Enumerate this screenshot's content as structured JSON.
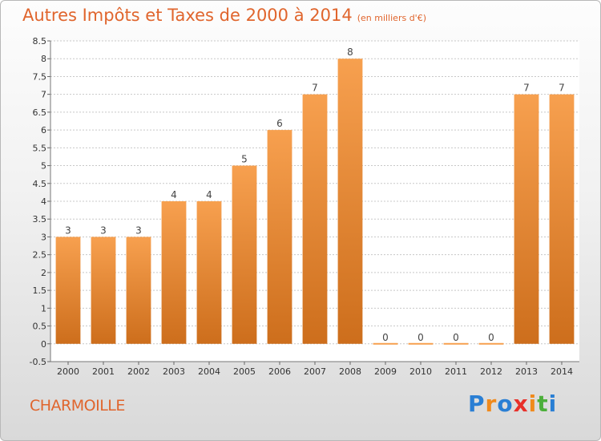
{
  "title": "Autres Impôts et Taxes de 2000 à 2014",
  "unit_note": "(en milliers d'€)",
  "commune": "CHARMOILLE",
  "brand": {
    "letters": [
      "P",
      "r",
      "o",
      "x",
      "i",
      "t",
      "i"
    ],
    "colors": [
      "#2a7fd4",
      "#f08a1c",
      "#2a7fd4",
      "#e8302a",
      "#f08a1c",
      "#4caf3a",
      "#2a7fd4"
    ]
  },
  "colors": {
    "bar_light": "#f7a04f",
    "bar_dark": "#cd6e1c",
    "title": "#e0652d",
    "grid": "#c8c8c8"
  },
  "chart_data": {
    "type": "bar",
    "title": "Autres Impôts et Taxes de 2000 à 2014",
    "categories": [
      "2000",
      "2001",
      "2002",
      "2003",
      "2004",
      "2005",
      "2006",
      "2007",
      "2008",
      "2009",
      "2010",
      "2011",
      "2012",
      "2013",
      "2014"
    ],
    "values": [
      3,
      3,
      3,
      4,
      4,
      5,
      6,
      7,
      8,
      0,
      0,
      0,
      0,
      7,
      7
    ],
    "data_labels": [
      "3",
      "3",
      "3",
      "4",
      "4",
      "5",
      "6",
      "7",
      "8",
      "0",
      "0",
      "0",
      "0",
      "7",
      "7"
    ],
    "y_ticks": [
      "-0.5",
      "0",
      "0.5",
      "1",
      "1.5",
      "2",
      "2.5",
      "3",
      "3.5",
      "4",
      "4.5",
      "5",
      "5.5",
      "6",
      "6.5",
      "7",
      "7.5",
      "8",
      "8.5"
    ],
    "ylim": [
      -0.5,
      8.5
    ],
    "grid": true,
    "xlabel": "",
    "ylabel": ""
  }
}
